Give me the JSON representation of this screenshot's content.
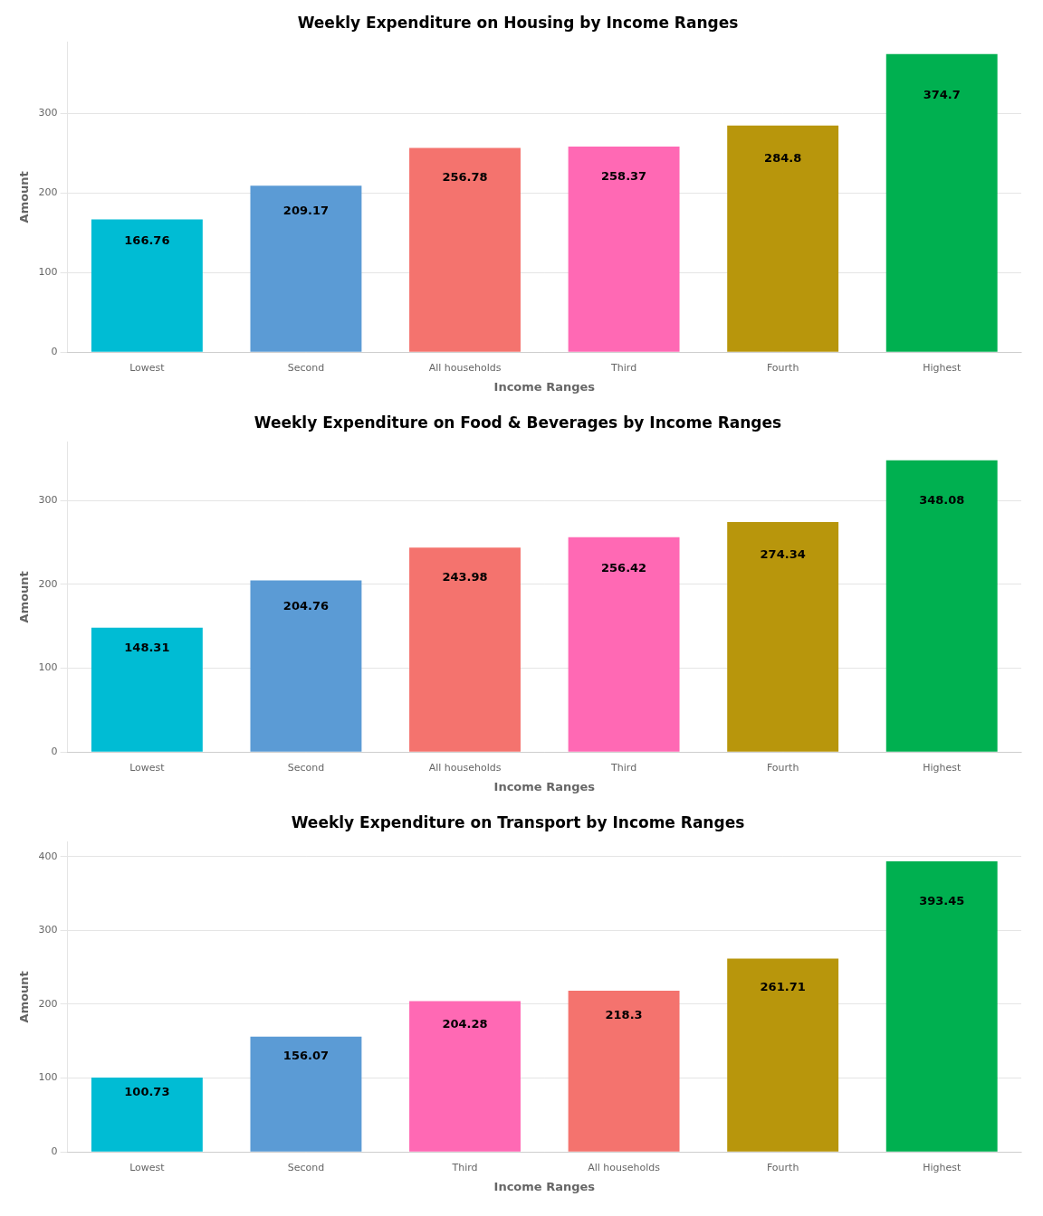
{
  "chart_data": [
    {
      "type": "bar",
      "title": "Weekly Expenditure on Housing by Income Ranges",
      "categories": [
        "Lowest",
        "Second",
        "All households",
        "Third",
        "Fourth",
        "Highest"
      ],
      "values": [
        166.76,
        209.17,
        256.78,
        258.37,
        284.8,
        374.7
      ],
      "colors": [
        "#00BCD4",
        "#5B9BD5",
        "#F4736E",
        "#FF69B4",
        "#B8960C",
        "#00B050"
      ],
      "xlabel": "Income Ranges",
      "ylabel": "Amount",
      "ylim": [
        0,
        390
      ],
      "yticks": [
        0,
        100,
        200,
        300
      ],
      "grid": true,
      "data_labels": true
    },
    {
      "type": "bar",
      "title": "Weekly Expenditure on Food & Beverages by Income Ranges",
      "categories": [
        "Lowest",
        "Second",
        "All households",
        "Third",
        "Fourth",
        "Highest"
      ],
      "values": [
        148.31,
        204.76,
        243.98,
        256.42,
        274.34,
        348.08
      ],
      "colors": [
        "#00BCD4",
        "#5B9BD5",
        "#F4736E",
        "#FF69B4",
        "#B8960C",
        "#00B050"
      ],
      "xlabel": "Income Ranges",
      "ylabel": "Amount",
      "ylim": [
        0,
        370
      ],
      "yticks": [
        0,
        100,
        200,
        300
      ],
      "grid": true,
      "data_labels": true
    },
    {
      "type": "bar",
      "title": "Weekly Expenditure on Transport by Income Ranges",
      "categories": [
        "Lowest",
        "Second",
        "Third",
        "All households",
        "Fourth",
        "Highest"
      ],
      "values": [
        100.73,
        156.07,
        204.28,
        218.3,
        261.71,
        393.45
      ],
      "colors": [
        "#00BCD4",
        "#5B9BD5",
        "#FF69B4",
        "#F4736E",
        "#B8960C",
        "#00B050"
      ],
      "xlabel": "Income Ranges",
      "ylabel": "Amount",
      "ylim": [
        0,
        420
      ],
      "yticks": [
        0,
        100,
        200,
        300,
        400
      ],
      "grid": true,
      "data_labels": true
    }
  ]
}
